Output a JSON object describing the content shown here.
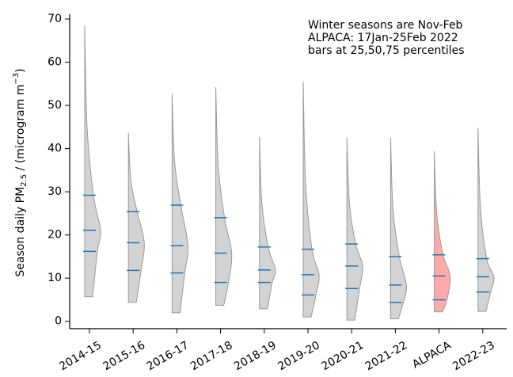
{
  "chart_data": {
    "type": "violin",
    "ylabel_parts": [
      "Season daily PM",
      "2.5",
      " / (microgram m",
      "−3",
      ")"
    ],
    "annotation": [
      "Winter seasons are Nov-Feb",
      "ALPACA: 17Jan-25Feb 2022",
      "bars at 25,50,75 percentiles"
    ],
    "categories": [
      "2014-15",
      "2015-16",
      "2016-17",
      "2017-18",
      "2018-19",
      "2019-20",
      "2020-21",
      "2021-22",
      "ALPACA",
      "2022-23"
    ],
    "min": [
      5.7,
      4.4,
      2.0,
      3.7,
      2.9,
      1.0,
      0.3,
      0.6,
      2.2,
      2.3
    ],
    "p25": [
      16.2,
      11.8,
      11.2,
      9.0,
      9.0,
      6.1,
      7.6,
      4.4,
      5.0,
      6.8
    ],
    "p50": [
      21.1,
      18.2,
      17.5,
      15.8,
      11.9,
      10.8,
      12.8,
      8.4,
      10.5,
      10.3
    ],
    "p75": [
      29.2,
      25.4,
      26.9,
      24.0,
      17.2,
      16.7,
      17.9,
      15.0,
      15.4,
      14.5
    ],
    "max": [
      68.5,
      43.6,
      52.7,
      54.2,
      42.7,
      55.4,
      42.6,
      42.5,
      39.4,
      44.8
    ],
    "colors": [
      "#d3d3d3",
      "#d3d3d3",
      "#d3d3d3",
      "#d3d3d3",
      "#d3d3d3",
      "#d3d3d3",
      "#d3d3d3",
      "#d3d3d3",
      "#ffaaaa",
      "#d3d3d3"
    ],
    "bar_color": "#1f77b4",
    "ylim": [
      -1.7,
      71.1
    ],
    "yticks": [
      0,
      10,
      20,
      30,
      40,
      50,
      60,
      70
    ]
  }
}
